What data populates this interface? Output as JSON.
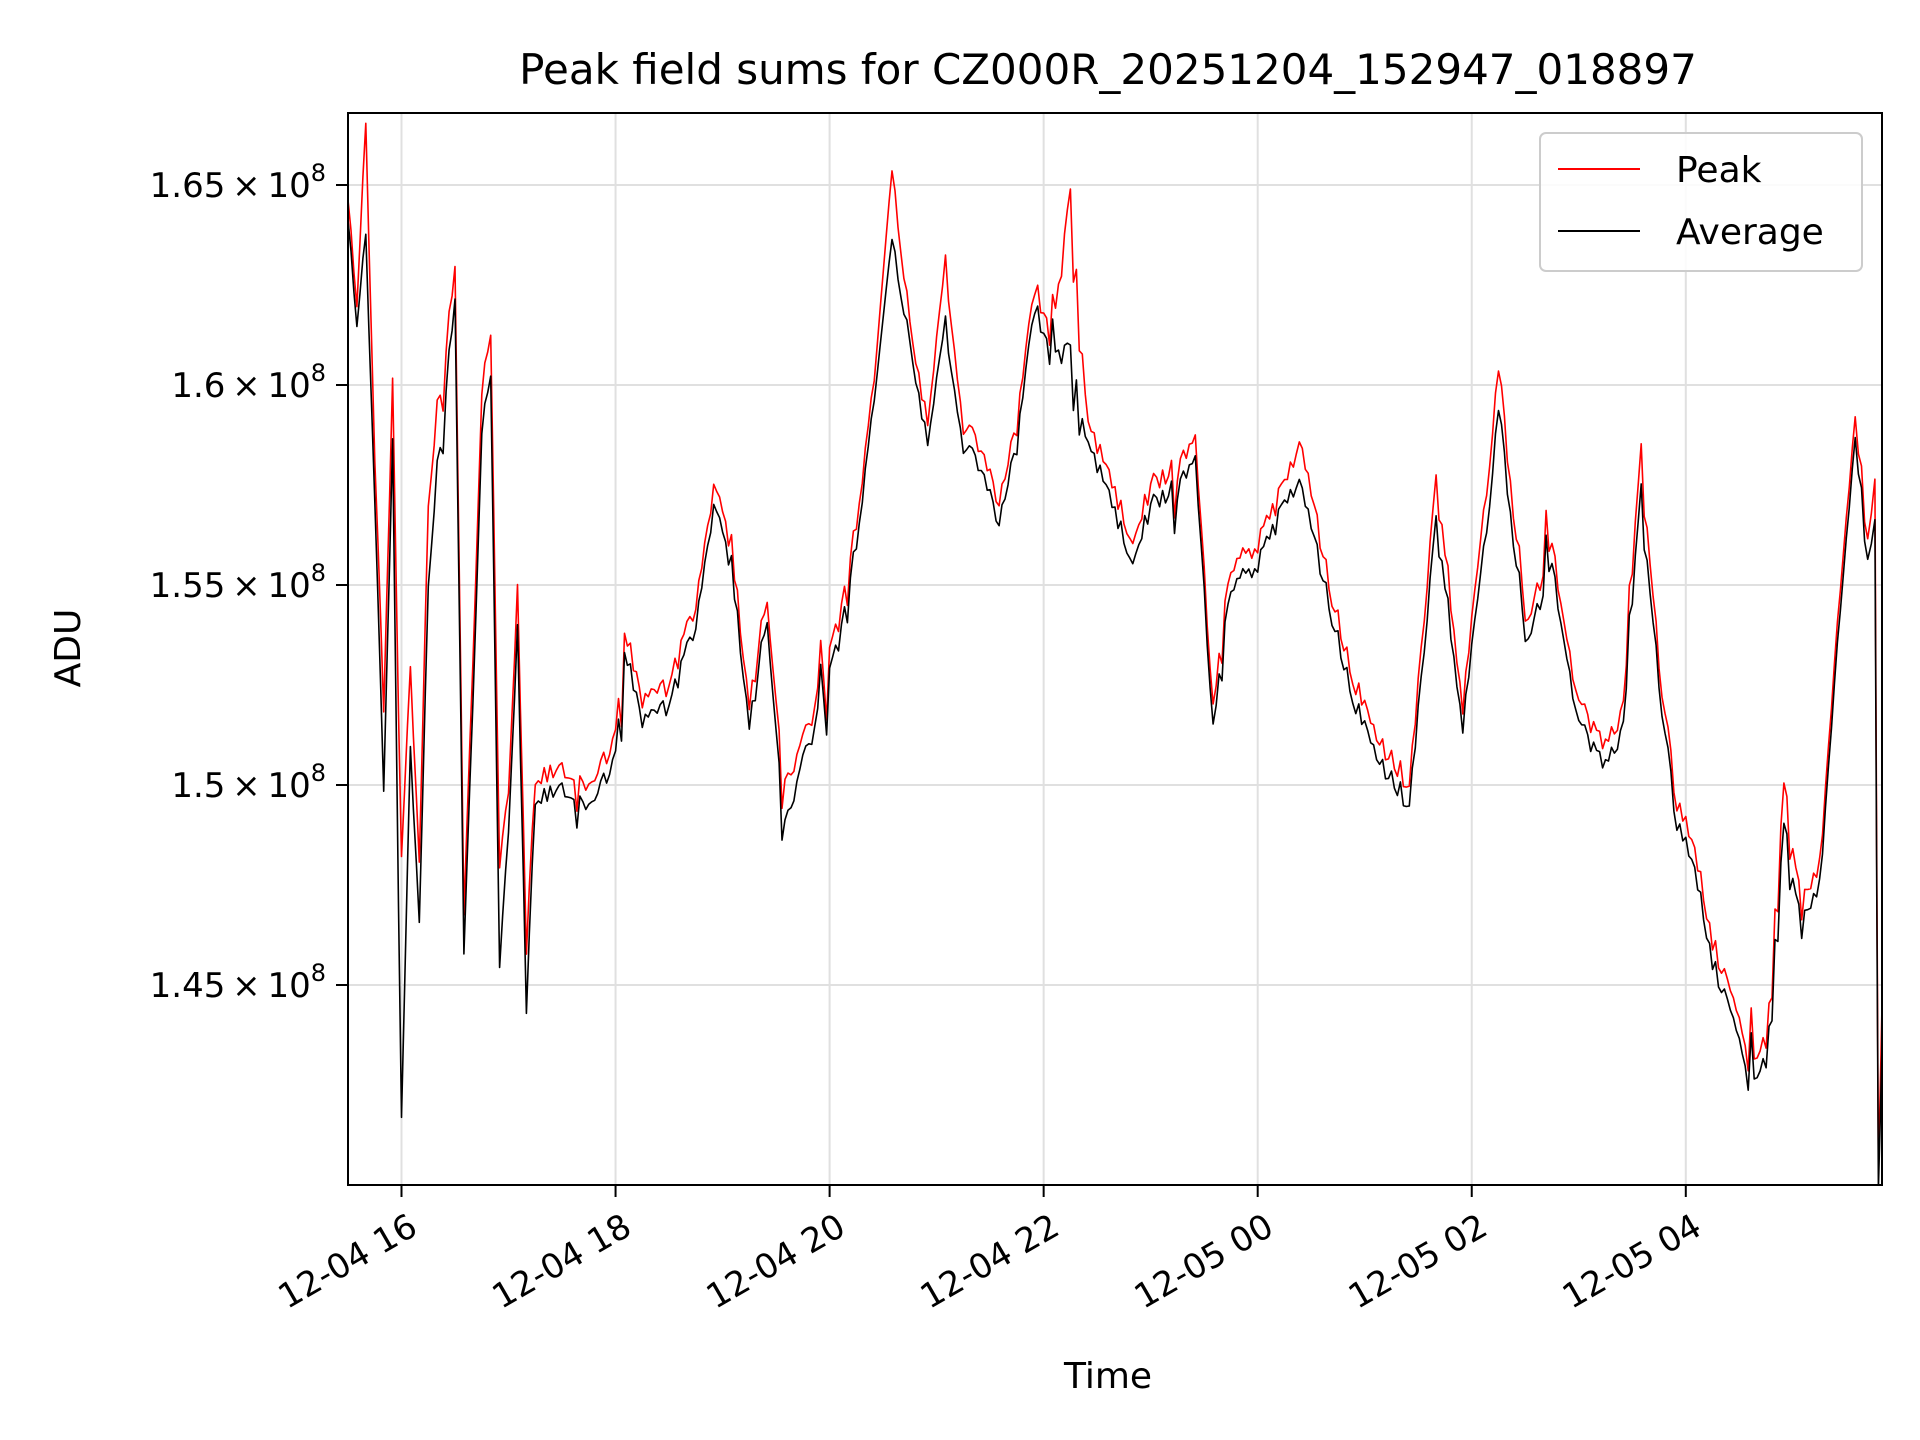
{
  "chart_data": {
    "type": "line",
    "title": "Peak field sums for CZ000R_20251204_152947_018897",
    "xlabel": "Time",
    "ylabel": "ADU",
    "grid": true,
    "legend_placement": "top-right",
    "xlim": [
      "2025-12-04T15:30",
      "2025-12-05T05:50"
    ],
    "ylim": [
      140000000.0,
      166800000.0
    ],
    "x_ticks": [
      "2025-12-04T16:00",
      "2025-12-04T18:00",
      "2025-12-04T20:00",
      "2025-12-04T22:00",
      "2025-12-05T00:00",
      "2025-12-05T02:00",
      "2025-12-05T04:00"
    ],
    "x_tick_labels": [
      "12-04 16",
      "12-04 18",
      "12-04 20",
      "12-04 22",
      "12-05 00",
      "12-05 02",
      "12-05 04"
    ],
    "y_ticks": [
      145000000.0,
      150000000.0,
      155000000.0,
      160000000.0,
      165000000.0
    ],
    "y_tick_mantissas": [
      "1.45",
      "1.5",
      "1.55",
      "1.6",
      "1.65"
    ],
    "y_tick_exponent": "8",
    "series": [
      {
        "name": "Peak",
        "color": "#ff0000",
        "points": [
          [
            "2025-12-04T15:30",
            164500000.0
          ],
          [
            "2025-12-04T15:35",
            162000000.0
          ],
          [
            "2025-12-04T15:40",
            166800000.0
          ],
          [
            "2025-12-04T15:45",
            158000000.0
          ],
          [
            "2025-12-04T15:50",
            152000000.0
          ],
          [
            "2025-12-04T15:55",
            160000000.0
          ],
          [
            "2025-12-04T16:00",
            148000000.0
          ],
          [
            "2025-12-04T16:05",
            153000000.0
          ],
          [
            "2025-12-04T16:10",
            148000000.0
          ],
          [
            "2025-12-04T16:15",
            157000000.0
          ],
          [
            "2025-12-04T16:20",
            159500000.0
          ],
          [
            "2025-12-04T16:25",
            161000000.0
          ],
          [
            "2025-12-04T16:30",
            162800000.0
          ],
          [
            "2025-12-04T16:35",
            147000000.0
          ],
          [
            "2025-12-04T16:40",
            153000000.0
          ],
          [
            "2025-12-04T16:45",
            160000000.0
          ],
          [
            "2025-12-04T16:50",
            161000000.0
          ],
          [
            "2025-12-04T16:55",
            148000000.0
          ],
          [
            "2025-12-04T17:00",
            150000000.0
          ],
          [
            "2025-12-04T17:05",
            155000000.0
          ],
          [
            "2025-12-04T17:10",
            146000000.0
          ],
          [
            "2025-12-04T17:15",
            150000000.0
          ],
          [
            "2025-12-04T17:30",
            150500000.0
          ],
          [
            "2025-12-04T17:45",
            150000000.0
          ],
          [
            "2025-12-04T18:00",
            151000000.0
          ],
          [
            "2025-12-04T18:05",
            154000000.0
          ],
          [
            "2025-12-04T18:15",
            152000000.0
          ],
          [
            "2025-12-04T18:30",
            152500000.0
          ],
          [
            "2025-12-04T18:45",
            154500000.0
          ],
          [
            "2025-12-04T18:55",
            157500000.0
          ],
          [
            "2025-12-04T19:05",
            156000000.0
          ],
          [
            "2025-12-04T19:15",
            152000000.0
          ],
          [
            "2025-12-04T19:25",
            154500000.0
          ],
          [
            "2025-12-04T19:35",
            150000000.0
          ],
          [
            "2025-12-04T19:45",
            151000000.0
          ],
          [
            "2025-12-04T19:55",
            152500000.0
          ],
          [
            "2025-12-04T20:05",
            154000000.0
          ],
          [
            "2025-12-04T20:15",
            156500000.0
          ],
          [
            "2025-12-04T20:25",
            160000000.0
          ],
          [
            "2025-12-04T20:35",
            165200000.0
          ],
          [
            "2025-12-04T20:45",
            161500000.0
          ],
          [
            "2025-12-04T20:55",
            159000000.0
          ],
          [
            "2025-12-04T21:05",
            163000000.0
          ],
          [
            "2025-12-04T21:15",
            159000000.0
          ],
          [
            "2025-12-04T21:25",
            158500000.0
          ],
          [
            "2025-12-04T21:35",
            157000000.0
          ],
          [
            "2025-12-04T21:45",
            159000000.0
          ],
          [
            "2025-12-04T21:55",
            162500000.0
          ],
          [
            "2025-12-04T22:05",
            161000000.0
          ],
          [
            "2025-12-04T22:15",
            164900000.0
          ],
          [
            "2025-12-04T22:25",
            159000000.0
          ],
          [
            "2025-12-04T22:35",
            158000000.0
          ],
          [
            "2025-12-04T22:50",
            156000000.0
          ],
          [
            "2025-12-04T23:00",
            157500000.0
          ],
          [
            "2025-12-04T23:15",
            158000000.0
          ],
          [
            "2025-12-04T23:25",
            158500000.0
          ],
          [
            "2025-12-04T23:35",
            152000000.0
          ],
          [
            "2025-12-04T23:45",
            155500000.0
          ],
          [
            "2025-12-05T00:00",
            156000000.0
          ],
          [
            "2025-12-05T00:15",
            157500000.0
          ],
          [
            "2025-12-05T00:25",
            158500000.0
          ],
          [
            "2025-12-05T00:40",
            155000000.0
          ],
          [
            "2025-12-05T00:55",
            152500000.0
          ],
          [
            "2025-12-05T01:10",
            151000000.0
          ],
          [
            "2025-12-05T01:25",
            150000000.0
          ],
          [
            "2025-12-05T01:40",
            157500000.0
          ],
          [
            "2025-12-05T01:55",
            152000000.0
          ],
          [
            "2025-12-05T02:10",
            158000000.0
          ],
          [
            "2025-12-05T02:15",
            160500000.0
          ],
          [
            "2025-12-05T02:30",
            154000000.0
          ],
          [
            "2025-12-05T02:45",
            156000000.0
          ],
          [
            "2025-12-05T03:00",
            152000000.0
          ],
          [
            "2025-12-05T03:15",
            151000000.0
          ],
          [
            "2025-12-05T03:25",
            152000000.0
          ],
          [
            "2025-12-05T03:35",
            158500000.0
          ],
          [
            "2025-12-05T03:45",
            153000000.0
          ],
          [
            "2025-12-05T03:55",
            149500000.0
          ],
          [
            "2025-12-05T04:05",
            148500000.0
          ],
          [
            "2025-12-05T04:15",
            146000000.0
          ],
          [
            "2025-12-05T04:25",
            145000000.0
          ],
          [
            "2025-12-05T04:35",
            143000000.0
          ],
          [
            "2025-12-05T04:45",
            143500000.0
          ],
          [
            "2025-12-05T04:55",
            150000000.0
          ],
          [
            "2025-12-05T05:05",
            147000000.0
          ],
          [
            "2025-12-05T05:15",
            148000000.0
          ],
          [
            "2025-12-05T05:25",
            154000000.0
          ],
          [
            "2025-12-05T05:35",
            159000000.0
          ],
          [
            "2025-12-05T05:42",
            156000000.0
          ],
          [
            "2025-12-05T05:46",
            157500000.0
          ],
          [
            "2025-12-05T05:48",
            140500000.0
          ],
          [
            "2025-12-05T05:50",
            144500000.0
          ]
        ]
      },
      {
        "name": "Average",
        "color": "#000000",
        "points": [
          [
            "2025-12-04T15:30",
            164000000.0
          ],
          [
            "2025-12-04T15:35",
            161500000.0
          ],
          [
            "2025-12-04T15:40",
            164000000.0
          ],
          [
            "2025-12-04T15:45",
            157000000.0
          ],
          [
            "2025-12-04T15:50",
            150000000.0
          ],
          [
            "2025-12-04T15:55",
            158500000.0
          ],
          [
            "2025-12-04T16:00",
            141500000.0
          ],
          [
            "2025-12-04T16:05",
            151000000.0
          ],
          [
            "2025-12-04T16:10",
            146500000.0
          ],
          [
            "2025-12-04T16:15",
            155000000.0
          ],
          [
            "2025-12-04T16:20",
            158000000.0
          ],
          [
            "2025-12-04T16:25",
            160000000.0
          ],
          [
            "2025-12-04T16:30",
            162000000.0
          ],
          [
            "2025-12-04T16:35",
            146000000.0
          ],
          [
            "2025-12-04T16:40",
            152000000.0
          ],
          [
            "2025-12-04T16:45",
            159000000.0
          ],
          [
            "2025-12-04T16:50",
            160000000.0
          ],
          [
            "2025-12-04T16:55",
            145500000.0
          ],
          [
            "2025-12-04T17:00",
            149000000.0
          ],
          [
            "2025-12-04T17:05",
            154000000.0
          ],
          [
            "2025-12-04T17:10",
            144500000.0
          ],
          [
            "2025-12-04T17:15",
            149500000.0
          ],
          [
            "2025-12-04T17:30",
            150000000.0
          ],
          [
            "2025-12-04T17:45",
            149500000.0
          ],
          [
            "2025-12-04T18:00",
            150500000.0
          ],
          [
            "2025-12-04T18:05",
            153500000.0
          ],
          [
            "2025-12-04T18:15",
            151500000.0
          ],
          [
            "2025-12-04T18:30",
            152000000.0
          ],
          [
            "2025-12-04T18:45",
            154000000.0
          ],
          [
            "2025-12-04T18:55",
            157000000.0
          ],
          [
            "2025-12-04T19:05",
            155500000.0
          ],
          [
            "2025-12-04T19:15",
            151500000.0
          ],
          [
            "2025-12-04T19:25",
            154000000.0
          ],
          [
            "2025-12-04T19:35",
            149000000.0
          ],
          [
            "2025-12-04T19:45",
            150500000.0
          ],
          [
            "2025-12-04T19:55",
            152000000.0
          ],
          [
            "2025-12-04T20:05",
            153500000.0
          ],
          [
            "2025-12-04T20:15",
            156000000.0
          ],
          [
            "2025-12-04T20:25",
            159500000.0
          ],
          [
            "2025-12-04T20:35",
            163500000.0
          ],
          [
            "2025-12-04T20:45",
            161000000.0
          ],
          [
            "2025-12-04T20:55",
            158500000.0
          ],
          [
            "2025-12-04T21:05",
            161500000.0
          ],
          [
            "2025-12-04T21:15",
            158500000.0
          ],
          [
            "2025-12-04T21:25",
            158000000.0
          ],
          [
            "2025-12-04T21:35",
            156500000.0
          ],
          [
            "2025-12-04T21:45",
            158500000.0
          ],
          [
            "2025-12-04T21:55",
            162000000.0
          ],
          [
            "2025-12-04T22:05",
            160500000.0
          ],
          [
            "2025-12-04T22:15",
            161000000.0
          ],
          [
            "2025-12-04T22:25",
            158500000.0
          ],
          [
            "2025-12-04T22:35",
            157500000.0
          ],
          [
            "2025-12-04T22:50",
            155500000.0
          ],
          [
            "2025-12-04T23:00",
            157000000.0
          ],
          [
            "2025-12-04T23:15",
            157500000.0
          ],
          [
            "2025-12-04T23:25",
            158000000.0
          ],
          [
            "2025-12-04T23:35",
            151500000.0
          ],
          [
            "2025-12-04T23:45",
            155000000.0
          ],
          [
            "2025-12-05T00:00",
            155500000.0
          ],
          [
            "2025-12-05T00:15",
            157000000.0
          ],
          [
            "2025-12-05T00:25",
            157500000.0
          ],
          [
            "2025-12-05T00:40",
            154500000.0
          ],
          [
            "2025-12-05T00:55",
            152000000.0
          ],
          [
            "2025-12-05T01:10",
            150500000.0
          ],
          [
            "2025-12-05T01:25",
            149500000.0
          ],
          [
            "2025-12-05T01:40",
            156500000.0
          ],
          [
            "2025-12-05T01:55",
            151500000.0
          ],
          [
            "2025-12-05T02:10",
            157000000.0
          ],
          [
            "2025-12-05T02:15",
            159500000.0
          ],
          [
            "2025-12-05T02:30",
            153500000.0
          ],
          [
            "2025-12-05T02:45",
            155500000.0
          ],
          [
            "2025-12-05T03:00",
            151500000.0
          ],
          [
            "2025-12-05T03:15",
            150500000.0
          ],
          [
            "2025-12-05T03:25",
            151500000.0
          ],
          [
            "2025-12-05T03:35",
            157500000.0
          ],
          [
            "2025-12-05T03:45",
            152500000.0
          ],
          [
            "2025-12-05T03:55",
            149000000.0
          ],
          [
            "2025-12-05T04:05",
            148000000.0
          ],
          [
            "2025-12-05T04:15",
            145500000.0
          ],
          [
            "2025-12-05T04:25",
            144500000.0
          ],
          [
            "2025-12-05T04:35",
            142500000.0
          ],
          [
            "2025-12-05T04:45",
            143000000.0
          ],
          [
            "2025-12-05T04:55",
            149000000.0
          ],
          [
            "2025-12-05T05:05",
            146500000.0
          ],
          [
            "2025-12-05T05:15",
            147500000.0
          ],
          [
            "2025-12-05T05:25",
            153500000.0
          ],
          [
            "2025-12-05T05:35",
            158500000.0
          ],
          [
            "2025-12-05T05:42",
            155500000.0
          ],
          [
            "2025-12-05T05:46",
            156500000.0
          ],
          [
            "2025-12-05T05:48",
            140000000.0
          ],
          [
            "2025-12-05T05:50",
            143500000.0
          ]
        ]
      }
    ]
  }
}
